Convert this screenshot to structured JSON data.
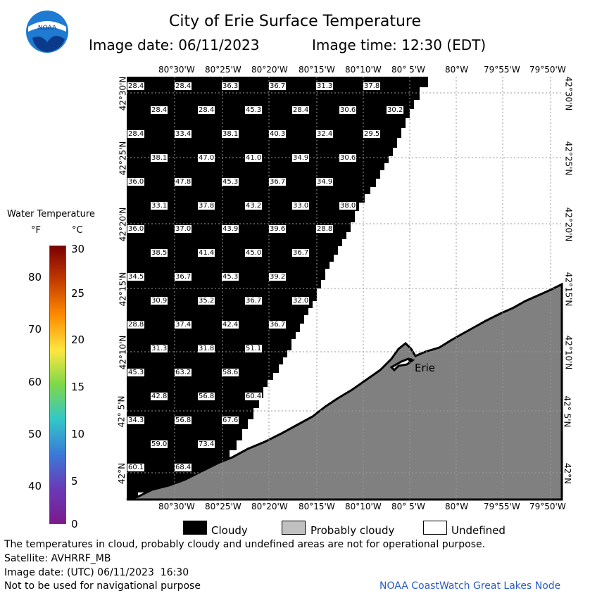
{
  "header": {
    "title": "City of Erie Surface Temperature",
    "image_date": "Image date: 06/11/2023",
    "image_time": "Image time: 12:30 (EDT)",
    "logo_text": "NOAA"
  },
  "map": {
    "lon_labels": [
      "80°30'W",
      "80°25'W",
      "80°20'W",
      "80°15'W",
      "80°10'W",
      "80° 5'W",
      "80°W",
      "79°55'W",
      "79°50'W"
    ],
    "lat_labels": [
      "42°30'N",
      "42°25'N",
      "42°20'N",
      "42°15'N",
      "42°10'N",
      "42° 5'N",
      "42°N"
    ],
    "city_label": "Erie",
    "colors": {
      "cloud": "#000000",
      "land": "#808080",
      "water_undefined": "#ffffff",
      "grid": "#999999"
    },
    "temperature_labels": [
      [
        "28.4",
        "28.4",
        "36.3",
        "36.7",
        "31.3",
        "37.8"
      ],
      [
        "28.4",
        "28.4",
        "45.3",
        "28.4",
        "30.6",
        "30.2"
      ],
      [
        "28.4",
        "33.4",
        "38.1",
        "40.3",
        "32.4",
        "29.5"
      ],
      [
        "38.1",
        "47.0",
        "41.0",
        "34.9",
        "30.6"
      ],
      [
        "36.0",
        "47.8",
        "45.3",
        "36.7",
        "34.9"
      ],
      [
        "33.1",
        "37.8",
        "43.2",
        "33.0",
        "38.0"
      ],
      [
        "36.0",
        "37.0",
        "43.9",
        "39.6",
        "28.8"
      ],
      [
        "38.5",
        "41.4",
        "45.0",
        "36.7"
      ],
      [
        "34.5",
        "36.7",
        "45.3",
        "39.2"
      ],
      [
        "30.9",
        "35.2",
        "36.7",
        "32.0"
      ],
      [
        "28.8",
        "37.4",
        "42.4",
        "36.7"
      ],
      [
        "31.3",
        "31.8",
        "51.1"
      ],
      [
        "45.3",
        "63.2",
        "58.6"
      ],
      [
        "42.8",
        "56.8",
        "60.4"
      ],
      [
        "34.3",
        "56.8",
        "67.6"
      ],
      [
        "59.0",
        "73.4"
      ],
      [
        "60.1",
        "68.4"
      ]
    ]
  },
  "legend": {
    "title": "Water Temperature",
    "unit_f": "°F",
    "unit_c": "°C",
    "f_ticks": [
      "80",
      "70",
      "60",
      "50",
      "40"
    ],
    "c_ticks": [
      "30",
      "25",
      "20",
      "15",
      "10",
      "5",
      "0"
    ],
    "color_stops": [
      "#7a0000",
      "#c43c00",
      "#ff8c00",
      "#ffe640",
      "#7dd84a",
      "#33c7c9",
      "#3a7ad8",
      "#6a3ab6",
      "#7a1a8c"
    ]
  },
  "key": {
    "cloudy": "Cloudy",
    "probably_cloudy": "Probably cloudy",
    "undefined": "Undefined",
    "cloudy_color": "#000000",
    "probably_cloudy_color": "#c0c0c0",
    "undefined_color": "#ffffff"
  },
  "footer": {
    "disclaimer": "The temperatures in cloud, probably cloudy and undefined areas are not for operational purpose.",
    "satellite": "Satellite: AVHRRF_MB",
    "utc_date": "Image date: (UTC) 06/11/2023  16:30",
    "nav_warning": "Not to be used for navigational purpose",
    "credit": "NOAA CoastWatch Great Lakes Node"
  }
}
